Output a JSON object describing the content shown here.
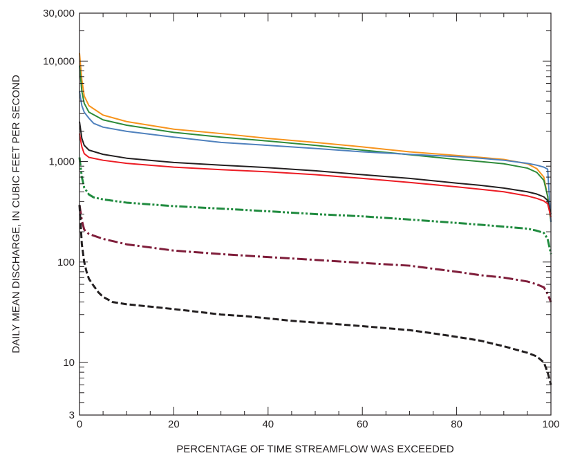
{
  "chart_data": {
    "type": "line",
    "title": "",
    "xlabel": "PERCENTAGE OF TIME STREAMFLOW WAS EXCEEDED",
    "ylabel": "DAILY MEAN DISCHARGE, IN CUBIC FEET PER SECOND",
    "xlim": [
      0,
      100
    ],
    "ylim": [
      3,
      30000
    ],
    "y_scale": "log",
    "grid": false,
    "x_ticks": [
      {
        "value": 0,
        "label": "0"
      },
      {
        "value": 20,
        "label": "20"
      },
      {
        "value": 40,
        "label": "40"
      },
      {
        "value": 60,
        "label": "60"
      },
      {
        "value": 80,
        "label": "80"
      },
      {
        "value": 100,
        "label": "100"
      }
    ],
    "y_ticks": [
      {
        "value": 3,
        "label": "3"
      },
      {
        "value": 10,
        "label": "10"
      },
      {
        "value": 100,
        "label": "100"
      },
      {
        "value": 1000,
        "label": "1,000"
      },
      {
        "value": 10000,
        "label": "10,000"
      },
      {
        "value": 30000,
        "label": "30,000"
      }
    ],
    "series": [
      {
        "color": "#f7941d",
        "style": "solid",
        "x": [
          0,
          0.5,
          1,
          2,
          5,
          10,
          20,
          30,
          40,
          50,
          60,
          70,
          80,
          85,
          90,
          95,
          97,
          98.5,
          99.3,
          100
        ],
        "y": [
          12000,
          6500,
          4500,
          3600,
          2900,
          2500,
          2100,
          1900,
          1700,
          1550,
          1400,
          1250,
          1150,
          1100,
          1050,
          950,
          850,
          700,
          450,
          250
        ]
      },
      {
        "color": "#2e8b3a",
        "style": "solid",
        "x": [
          0,
          0.5,
          1,
          2,
          5,
          10,
          20,
          30,
          40,
          50,
          60,
          70,
          80,
          85,
          90,
          95,
          97,
          98.5,
          99.3,
          100
        ],
        "y": [
          9000,
          5000,
          3800,
          3100,
          2600,
          2300,
          1950,
          1750,
          1600,
          1450,
          1300,
          1170,
          1050,
          1000,
          950,
          860,
          780,
          650,
          450,
          250
        ]
      },
      {
        "color": "#4f81bd",
        "style": "solid",
        "x": [
          0,
          0.5,
          1,
          2,
          3,
          5,
          10,
          20,
          30,
          40,
          50,
          60,
          70,
          80,
          85,
          90,
          95,
          97,
          98.5,
          99.3,
          100
        ],
        "y": [
          5000,
          3600,
          3100,
          2700,
          2400,
          2200,
          2000,
          1750,
          1550,
          1450,
          1350,
          1250,
          1180,
          1120,
          1080,
          1030,
          960,
          920,
          880,
          840,
          250
        ]
      },
      {
        "color": "#231f20",
        "style": "solid",
        "x": [
          0,
          0.5,
          1,
          2,
          5,
          10,
          20,
          30,
          40,
          50,
          60,
          70,
          80,
          85,
          90,
          95,
          97,
          98.5,
          99.3,
          100
        ],
        "y": [
          2500,
          1700,
          1450,
          1300,
          1180,
          1080,
          980,
          920,
          870,
          810,
          740,
          680,
          610,
          580,
          545,
          500,
          475,
          445,
          410,
          300
        ]
      },
      {
        "color": "#ec1c24",
        "style": "solid",
        "x": [
          0,
          0.5,
          1,
          2,
          5,
          10,
          20,
          30,
          40,
          50,
          60,
          70,
          80,
          85,
          90,
          95,
          97,
          98.5,
          99.3,
          100
        ],
        "y": [
          1900,
          1400,
          1200,
          1100,
          1030,
          960,
          880,
          830,
          790,
          740,
          680,
          620,
          560,
          530,
          500,
          455,
          430,
          405,
          380,
          280
        ]
      },
      {
        "color": "#208b3f",
        "style": "dash-dot-dot",
        "x": [
          0,
          0.5,
          1,
          2,
          3,
          5,
          10,
          20,
          30,
          40,
          50,
          60,
          70,
          80,
          85,
          90,
          95,
          97,
          98.5,
          99.3,
          100
        ],
        "y": [
          1100,
          700,
          550,
          470,
          440,
          420,
          390,
          360,
          340,
          320,
          300,
          285,
          265,
          245,
          235,
          225,
          215,
          205,
          195,
          170,
          120
        ]
      },
      {
        "color": "#7f1d3a",
        "style": "dash-dot",
        "x": [
          0,
          0.5,
          1,
          2,
          5,
          10,
          20,
          30,
          40,
          50,
          60,
          70,
          80,
          85,
          90,
          95,
          97,
          98.5,
          99.3,
          100
        ],
        "y": [
          370,
          260,
          210,
          190,
          170,
          150,
          130,
          120,
          112,
          105,
          98,
          92,
          80,
          74,
          70,
          64,
          60,
          56,
          48,
          40
        ]
      },
      {
        "color": "#231f20",
        "style": "dashed",
        "x": [
          0,
          0.5,
          1,
          1.5,
          2,
          3,
          4,
          5,
          7,
          10,
          15,
          20,
          25,
          30,
          35,
          40,
          45,
          50,
          55,
          60,
          65,
          70,
          75,
          80,
          85,
          90,
          95,
          97,
          98.5,
          99.3,
          100
        ],
        "y": [
          370,
          150,
          100,
          80,
          68,
          58,
          50,
          45,
          40,
          38,
          36,
          34,
          32,
          30,
          29,
          27.5,
          26,
          25,
          24,
          23,
          22,
          21,
          19.5,
          18,
          16.5,
          14.5,
          12.5,
          11.5,
          10,
          8,
          6
        ]
      }
    ]
  }
}
